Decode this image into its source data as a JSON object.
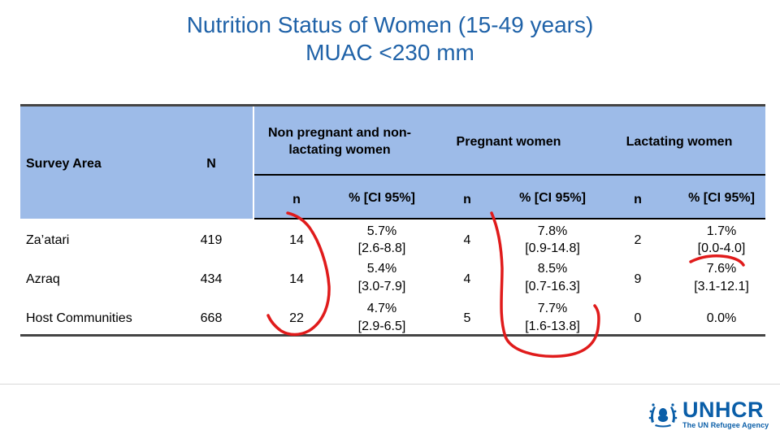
{
  "title": {
    "line1": "Nutrition Status of Women (15-49 years)",
    "line2": "MUAC <230 mm"
  },
  "table": {
    "headers": {
      "survey_area": "Survey Area",
      "n_total": "N",
      "group1": "Non pregnant and non-lactating women",
      "group2": "Pregnant women",
      "group3": "Lactating women",
      "sub_n": "n",
      "sub_pct": "% [CI 95%]"
    },
    "rows": [
      {
        "area": "Za’atari",
        "N": "419",
        "g1_n": "14",
        "g1_pct": "5.7%",
        "g1_ci": "[2.6-8.8]",
        "g2_n": "4",
        "g2_pct": "7.8%",
        "g2_ci": "[0.9-14.8]",
        "g3_n": "2",
        "g3_pct": "1.7%",
        "g3_ci": "[0.0-4.0]"
      },
      {
        "area": "Azraq",
        "N": "434",
        "g1_n": "14",
        "g1_pct": "5.4%",
        "g1_ci": "[3.0-7.9]",
        "g2_n": "4",
        "g2_pct": "8.5%",
        "g2_ci": "[0.7-16.3]",
        "g3_n": "9",
        "g3_pct": "7.6%",
        "g3_ci": "[3.1-12.1]"
      },
      {
        "area": "Host Communities",
        "N": "668",
        "g1_n": "22",
        "g1_pct": "4.7%",
        "g1_ci": "[2.9-6.5]",
        "g2_n": "5",
        "g2_pct": "7.7%",
        "g2_ci": "[1.6-13.8]",
        "g3_n": "0",
        "g3_pct": "0.0%",
        "g3_ci": ""
      }
    ]
  },
  "logo": {
    "name": "UNHCR",
    "tagline": "The UN Refugee Agency"
  },
  "colors": {
    "title": "#1f62a8",
    "header_bg": "#9dbbe8",
    "annotation": "#e01b1b",
    "logo": "#0a5ea8"
  }
}
